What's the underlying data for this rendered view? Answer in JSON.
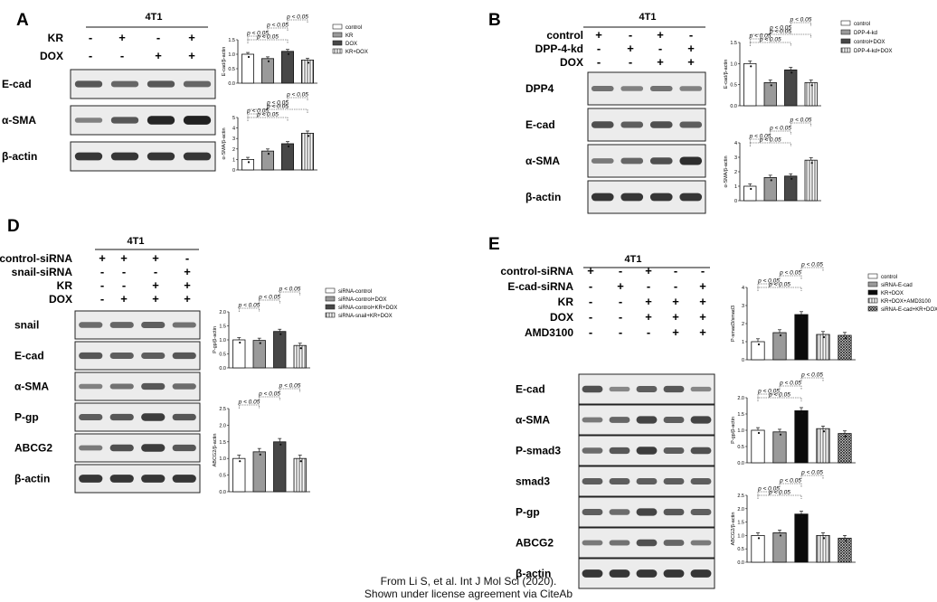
{
  "caption": {
    "line1": "From Li S, et al. Int J Mol Sci (2020).",
    "line2": "Shown under license agreement via CiteAb"
  },
  "colors": {
    "text": "#111111",
    "band": "#1a1a1a",
    "panel_bg": "#ececec",
    "sig_line": "#333333"
  },
  "panels": [
    {
      "id": "A",
      "letter": "A",
      "cell_line": "4T1",
      "treatments": [
        {
          "label": "KR",
          "signs": [
            "-",
            "+",
            "-",
            "+"
          ]
        },
        {
          "label": "DOX",
          "signs": [
            "-",
            "-",
            "+",
            "+"
          ]
        }
      ],
      "blots": [
        {
          "label": "E-cad",
          "bands": [
            0.55,
            0.45,
            0.55,
            0.45
          ]
        },
        {
          "label": "α-SMA",
          "bands": [
            0.25,
            0.55,
            0.9,
            0.95
          ]
        },
        {
          "label": "β-actin",
          "bands": [
            0.8,
            0.8,
            0.8,
            0.8
          ]
        }
      ],
      "legend": [
        "control",
        "KR",
        "DOX",
        "KR+DOX"
      ],
      "charts": [
        {
          "type": "bar",
          "ylabel": "E-cad/β-actin",
          "categories": [
            "control",
            "KR",
            "DOX",
            "KR+DOX"
          ],
          "values": [
            1.0,
            0.85,
            1.1,
            0.8
          ],
          "ylim": [
            0,
            1.5
          ],
          "yticks": [
            "0.0",
            "0.5",
            "1.0",
            "1.5"
          ],
          "annotations": [
            "p < 0.05",
            "p < 0.05",
            "p < 0.05",
            "p < 0.05"
          ]
        },
        {
          "type": "bar",
          "ylabel": "α-SMA/β-actin",
          "categories": [
            "control",
            "KR",
            "DOX",
            "KR+DOX"
          ],
          "values": [
            1.0,
            1.8,
            2.5,
            3.5
          ],
          "ylim": [
            0,
            5
          ],
          "yticks": [
            "0",
            "1",
            "2",
            "3",
            "4",
            "5"
          ],
          "annotations": [
            "p < 0.05",
            "p < 0.05",
            "p < 0.05",
            "p < 0.05",
            "p < 0.05"
          ]
        }
      ]
    },
    {
      "id": "B",
      "letter": "B",
      "cell_line": "4T1",
      "treatments": [
        {
          "label": "control",
          "signs": [
            "+",
            "-",
            "+",
            "-"
          ]
        },
        {
          "label": "DPP-4-kd",
          "signs": [
            "-",
            "+",
            "-",
            "+"
          ]
        },
        {
          "label": "DOX",
          "signs": [
            "-",
            "-",
            "+",
            "+"
          ]
        }
      ],
      "blots": [
        {
          "label": "DPP4",
          "bands": [
            0.35,
            0.25,
            0.35,
            0.25
          ]
        },
        {
          "label": "E-cad",
          "bands": [
            0.6,
            0.5,
            0.6,
            0.5
          ]
        },
        {
          "label": "α-SMA",
          "bands": [
            0.3,
            0.45,
            0.6,
            0.85
          ]
        },
        {
          "label": "β-actin",
          "bands": [
            0.8,
            0.8,
            0.8,
            0.8
          ]
        }
      ],
      "legend": [
        "control",
        "DPP-4-kd",
        "control+DOX",
        "DPP-4-kd+DOX"
      ],
      "charts": [
        {
          "type": "bar",
          "ylabel": "E-cad/β-actin",
          "categories": [
            "control",
            "DPP-4-kd",
            "control+DOX",
            "DPP-4-kd+DOX"
          ],
          "values": [
            1.0,
            0.55,
            0.85,
            0.55
          ],
          "ylim": [
            0,
            1.5
          ],
          "yticks": [
            "0.0",
            "0.5",
            "1.0",
            "1.5"
          ],
          "annotations": [
            "p < 0.05",
            "p < 0.05",
            "p < 0.05",
            "p < 0.05",
            "p < 0.05"
          ]
        },
        {
          "type": "bar",
          "ylabel": "α-SMA/β-actin",
          "categories": [
            "control",
            "DPP-4-kd",
            "control+DOX",
            "DPP-4-kd+DOX"
          ],
          "values": [
            1.0,
            1.6,
            1.7,
            2.8
          ],
          "ylim": [
            0,
            4
          ],
          "yticks": [
            "0",
            "1",
            "2",
            "3",
            "4"
          ],
          "annotations": [
            "p < 0.05",
            "p < 0.05",
            "p < 0.05",
            "p < 0.05"
          ]
        }
      ]
    },
    {
      "id": "D",
      "letter": "D",
      "cell_line": "4T1",
      "treatments": [
        {
          "label": "control-siRNA",
          "signs": [
            "+",
            "+",
            "+",
            "-"
          ]
        },
        {
          "label": "snail-siRNA",
          "signs": [
            "-",
            "-",
            "-",
            "+"
          ]
        },
        {
          "label": "KR",
          "signs": [
            "-",
            "-",
            "+",
            "+"
          ]
        },
        {
          "label": "DOX",
          "signs": [
            "-",
            "+",
            "+",
            "+"
          ]
        }
      ],
      "blots": [
        {
          "label": "snail",
          "bands": [
            0.4,
            0.45,
            0.5,
            0.35
          ]
        },
        {
          "label": "E-cad",
          "bands": [
            0.55,
            0.5,
            0.5,
            0.55
          ]
        },
        {
          "label": "α-SMA",
          "bands": [
            0.25,
            0.35,
            0.55,
            0.4
          ]
        },
        {
          "label": "P-gp",
          "bands": [
            0.5,
            0.55,
            0.75,
            0.55
          ]
        },
        {
          "label": "ABCG2",
          "bands": [
            0.3,
            0.6,
            0.75,
            0.55
          ]
        },
        {
          "label": "β-actin",
          "bands": [
            0.8,
            0.8,
            0.8,
            0.8
          ]
        }
      ],
      "legend": [
        "siRNA-control",
        "siRNA-control+DOX",
        "siRNA-control+KR+DOX",
        "siRNA-snail+KR+DOX"
      ],
      "charts": [
        {
          "type": "bar",
          "ylabel": "P-gp/β-actin",
          "categories": [
            "siRNA-control",
            "siRNA-control+DOX",
            "siRNA-control+KR+DOX",
            "siRNA-snail+KR+DOX"
          ],
          "values": [
            1.0,
            0.98,
            1.3,
            0.8
          ],
          "ylim": [
            0,
            2.0
          ],
          "yticks": [
            "0.0",
            "0.5",
            "1.0",
            "1.5",
            "2.0"
          ],
          "annotations": [
            "p < 0.05",
            "p < 0.05",
            "p < 0.05"
          ]
        },
        {
          "type": "bar",
          "ylabel": "ABCG2/β-actin",
          "categories": [
            "siRNA-control",
            "siRNA-control+DOX",
            "siRNA-control+KR+DOX",
            "siRNA-snail+KR+DOX"
          ],
          "values": [
            1.0,
            1.2,
            1.5,
            1.0
          ],
          "ylim": [
            0,
            2.5
          ],
          "yticks": [
            "0.0",
            "0.5",
            "1.0",
            "1.5",
            "2.0",
            "2.5"
          ],
          "annotations": [
            "p < 0.05",
            "p < 0.05",
            "p < 0.05"
          ]
        }
      ]
    },
    {
      "id": "E",
      "letter": "E",
      "cell_line": "4T1",
      "treatments": [
        {
          "label": "control-siRNA",
          "signs": [
            "+",
            "-",
            "+",
            "-",
            "-"
          ]
        },
        {
          "label": "E-cad-siRNA",
          "signs": [
            "-",
            "+",
            "-",
            "-",
            "+"
          ]
        },
        {
          "label": "KR",
          "signs": [
            "-",
            "-",
            "+",
            "+",
            "+"
          ]
        },
        {
          "label": "DOX",
          "signs": [
            "-",
            "-",
            "+",
            "+",
            "+"
          ]
        },
        {
          "label": "AMD3100",
          "signs": [
            "-",
            "-",
            "-",
            "+",
            "+"
          ]
        }
      ],
      "blots": [
        {
          "label": "E-cad",
          "bands": [
            0.6,
            0.2,
            0.5,
            0.55,
            0.2
          ]
        },
        {
          "label": "α-SMA",
          "bands": [
            0.3,
            0.45,
            0.7,
            0.5,
            0.7
          ]
        },
        {
          "label": "P-smad3",
          "bands": [
            0.4,
            0.55,
            0.75,
            0.5,
            0.6
          ]
        },
        {
          "label": "smad3",
          "bands": [
            0.5,
            0.5,
            0.5,
            0.5,
            0.5
          ]
        },
        {
          "label": "P-gp",
          "bands": [
            0.5,
            0.4,
            0.7,
            0.55,
            0.5
          ]
        },
        {
          "label": "ABCG2",
          "bands": [
            0.3,
            0.35,
            0.6,
            0.45,
            0.3
          ]
        },
        {
          "label": "β-actin",
          "bands": [
            0.8,
            0.8,
            0.8,
            0.8,
            0.8
          ]
        }
      ],
      "legend": [
        "control",
        "siRNA-E-cad",
        "KR+DOX",
        "KR+DOX+AMD3100",
        "siRNA-E-cad+KR+DOX+AMD3100"
      ],
      "charts": [
        {
          "type": "bar",
          "ylabel": "P-smad3/smad3",
          "categories": [
            "control",
            "siRNA-E-cad",
            "KR+DOX",
            "KR+DOX+AMD3100",
            "siRNA-E-cad+KR+DOX+AMD3100"
          ],
          "values": [
            1.0,
            1.5,
            2.5,
            1.4,
            1.35
          ],
          "ylim": [
            0,
            4
          ],
          "yticks": [
            "0",
            "1",
            "2",
            "3",
            "4"
          ],
          "annotations": [
            "p < 0.05",
            "p < 0.05",
            "p < 0.05",
            "p < 0.05"
          ]
        },
        {
          "type": "bar",
          "ylabel": "P-gp/β-actin",
          "categories": [
            "control",
            "siRNA-E-cad",
            "KR+DOX",
            "KR+DOX+AMD3100",
            "siRNA-E-cad+KR+DOX+AMD3100"
          ],
          "values": [
            1.0,
            0.95,
            1.6,
            1.05,
            0.9
          ],
          "ylim": [
            0,
            2.0
          ],
          "yticks": [
            "0.0",
            "0.5",
            "1.0",
            "1.5",
            "2.0"
          ],
          "annotations": [
            "p < 0.05",
            "p < 0.05",
            "p < 0.05",
            "p < 0.05"
          ]
        },
        {
          "type": "bar",
          "ylabel": "ABCG2/β-actin",
          "categories": [
            "control",
            "siRNA-E-cad",
            "KR+DOX",
            "KR+DOX+AMD3100",
            "siRNA-E-cad+KR+DOX+AMD3100"
          ],
          "values": [
            1.0,
            1.1,
            1.8,
            1.0,
            0.9
          ],
          "ylim": [
            0,
            2.5
          ],
          "yticks": [
            "0.0",
            "0.5",
            "1.0",
            "1.5",
            "2.0",
            "2.5"
          ],
          "annotations": [
            "p < 0.05",
            "p < 0.05",
            "p < 0.05",
            "p < 0.05"
          ]
        }
      ]
    }
  ]
}
